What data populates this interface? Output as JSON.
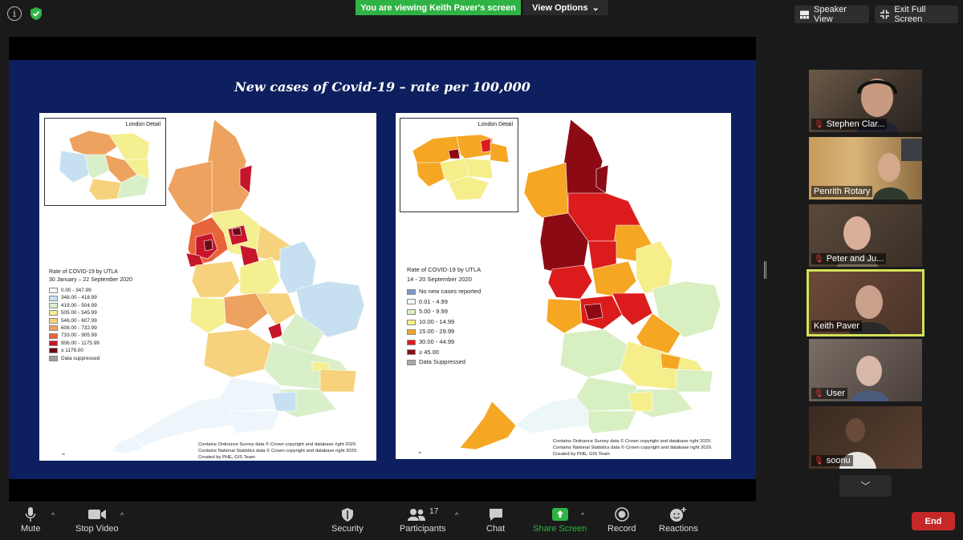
{
  "topbar": {
    "viewing_text": "You are viewing Keith Paver's screen",
    "view_options_label": "View Options",
    "speaker_view_label": "Speaker View",
    "exit_full_screen_label": "Exit Full Screen"
  },
  "slide": {
    "title": "New cases of Covid-19 – rate per 100,000",
    "left_map": {
      "inset_title": "London Detail",
      "legend_title": "Rate of COVID-19 by UTLA",
      "legend_subtitle": "30 January – 22 September 2020",
      "legend": [
        {
          "label": "0.00 - 347.99",
          "color": "#eef6fb"
        },
        {
          "label": "348.00 - 418.99",
          "color": "#c7e0f1"
        },
        {
          "label": "419.00 - 504.99",
          "color": "#d9efc9"
        },
        {
          "label": "505.00 - 545.99",
          "color": "#f4ef91"
        },
        {
          "label": "546.00 - 607.99",
          "color": "#f7d27c"
        },
        {
          "label": "608.00 - 732.99",
          "color": "#eea25f"
        },
        {
          "label": "733.00 - 905.99",
          "color": "#e8643a"
        },
        {
          "label": "906.00 - 1175.99",
          "color": "#c7162b"
        },
        {
          "label": "≥ 1176.00",
          "color": "#6d0a1a"
        },
        {
          "label": "Data suppressed",
          "color": "#9e9e9e"
        }
      ],
      "credits": [
        "Contains Ordnance Survey data © Crown copyright and database right 2020.",
        "Contains National Statistics data © Crown copyright and database right 2020.",
        "Created by PHE, GIS Team"
      ]
    },
    "right_map": {
      "inset_title": "London Detail",
      "legend_title": "Rate of COVID-19 by UTLA",
      "legend_subtitle": "14 - 20 September 2020",
      "legend": [
        {
          "label": "No new cases reported",
          "color": "#7b97c9"
        },
        {
          "label": "0.01 - 4.99",
          "color": "#eef7f7"
        },
        {
          "label": "5.00 - 9.99",
          "color": "#d8efc2"
        },
        {
          "label": "10.00 - 14.99",
          "color": "#f5ee8a"
        },
        {
          "label": "15.00 - 29.99",
          "color": "#f5a623"
        },
        {
          "label": "30.00 - 44.99",
          "color": "#dc1c1c"
        },
        {
          "label": "≥ 45.00",
          "color": "#8b0a14"
        },
        {
          "label": "Data Suppressed",
          "color": "#a8a8a8"
        }
      ],
      "credits": [
        "Contains Ordnance Survey data © Crown copyright and database right 2020.",
        "Contains National Statistics data © Crown copyright and database right 2020.",
        "Created by PHE, GIS Team"
      ]
    }
  },
  "participants": [
    {
      "name": "Stephen Clar...",
      "muted": true
    },
    {
      "name": "Penrith Rotary",
      "muted": false
    },
    {
      "name": "Peter and Ju...",
      "muted": true
    },
    {
      "name": "Keith Paver",
      "muted": false,
      "active": true
    },
    {
      "name": "User",
      "muted": true
    },
    {
      "name": "soonu",
      "muted": true
    }
  ],
  "toolbar": {
    "mute_label": "Mute",
    "stop_video_label": "Stop Video",
    "security_label": "Security",
    "participants_label": "Participants",
    "participants_count": "17",
    "chat_label": "Chat",
    "share_screen_label": "Share Screen",
    "record_label": "Record",
    "reactions_label": "Reactions",
    "end_label": "End"
  },
  "colors": {
    "accent_green": "#2fb344",
    "end_red": "#c62828",
    "active_speaker": "#d4e157",
    "slide_background": "#0d1f5e"
  }
}
